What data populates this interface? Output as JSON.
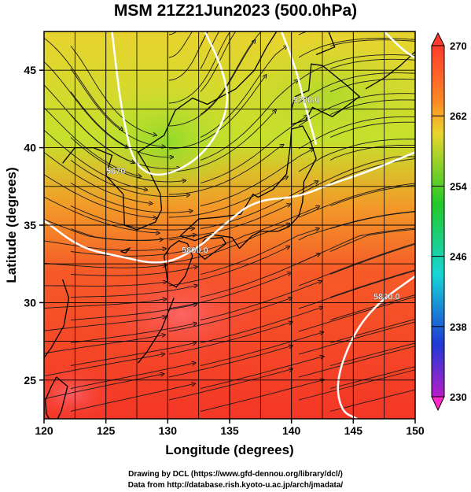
{
  "title": "MSM 21Z21Jun2023 (500.0hPa)",
  "map": {
    "lon_range": [
      120,
      150
    ],
    "lat_range": [
      22.5,
      47.5
    ],
    "x_axis": {
      "label": "Longitude (degrees)",
      "ticks": [
        120,
        125,
        130,
        135,
        140,
        145,
        150
      ]
    },
    "y_axis": {
      "label": "Latitude  (degrees)",
      "ticks": [
        25,
        30,
        35,
        40,
        45
      ]
    },
    "gridlines": true,
    "field": "temperature (K) shaded, wind streamlines, geopotential height contours",
    "contour_labels": [
      {
        "text": "5800.0",
        "lon": 132.2,
        "lat": 33.4
      },
      {
        "text": "5800.0",
        "lon": 147.7,
        "lat": 30.4
      },
      {
        "text": "5700.0",
        "lon": 141.2,
        "lat": 43.1
      },
      {
        "text": "5670",
        "lon": 125.8,
        "lat": 38.5
      }
    ]
  },
  "colorbar": {
    "min": 230,
    "max": 270,
    "labels": [
      "270",
      "262",
      "254",
      "246",
      "238",
      "230"
    ],
    "colors": [
      "#ff3a2e",
      "#ff8a24",
      "#d8de2c",
      "#22c928",
      "#16d6d6",
      "#1f3ad6",
      "#a01ec0",
      "#ff28c8"
    ],
    "end_arrows": true
  },
  "footer": {
    "line1": "Drawing by DCL (https://www.gfd-dennou.org/library/dcl/)",
    "line2": "Data from http://database.rish.kyoto-u.ac.jp/arch/jmadata/"
  }
}
